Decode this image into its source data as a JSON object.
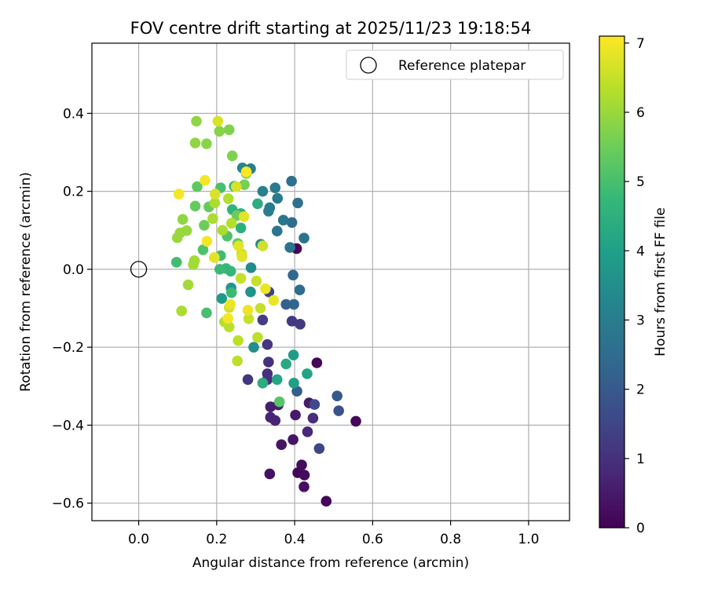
{
  "chart_data": {
    "type": "scatter",
    "title": "FOV centre drift starting at 2025/11/23 19:18:54",
    "xlabel": "Angular distance from reference (arcmin)",
    "ylabel": "Rotation from reference (arcmin)",
    "xlim": [
      -0.12,
      1.105
    ],
    "ylim": [
      -0.645,
      0.58
    ],
    "xticks": [
      "0.0",
      "0.2",
      "0.4",
      "0.6",
      "0.8",
      "1.0"
    ],
    "yticks": [
      "0.4",
      "0.2",
      "0.0",
      "−0.2",
      "−0.4",
      "−0.6"
    ],
    "xtick_values": [
      0.0,
      0.2,
      0.4,
      0.6,
      0.8,
      1.0
    ],
    "ytick_values": [
      0.4,
      0.2,
      0.0,
      -0.2,
      -0.4,
      -0.6
    ],
    "grid": true,
    "legend": {
      "position": "top-right",
      "label": "Reference platepar"
    },
    "reference_point": {
      "x": 0.0,
      "y": 0.0
    },
    "colorbar": {
      "label": "Hours from first FF file",
      "range": [
        0,
        7.1
      ],
      "ticks": [
        "0",
        "1",
        "2",
        "3",
        "4",
        "5",
        "6",
        "7"
      ],
      "tick_values": [
        0,
        1,
        2,
        3,
        4,
        5,
        6,
        7
      ],
      "colormap": "viridis",
      "colors": [
        "#440154",
        "#482878",
        "#3e4989",
        "#31688e",
        "#26828e",
        "#1f9e89",
        "#35b779",
        "#6ece58",
        "#b5de2b",
        "#fde725"
      ]
    },
    "points": [
      {
        "x": 0.405,
        "y": 0.053,
        "h": 0.1
      },
      {
        "x": 0.457,
        "y": -0.24,
        "h": 0.1
      },
      {
        "x": 0.557,
        "y": -0.39,
        "h": 0.1
      },
      {
        "x": 0.481,
        "y": -0.595,
        "h": 0.1
      },
      {
        "x": 0.408,
        "y": -0.522,
        "h": 0.1
      },
      {
        "x": 0.418,
        "y": -0.502,
        "h": 0.2
      },
      {
        "x": 0.425,
        "y": -0.528,
        "h": 0.2
      },
      {
        "x": 0.424,
        "y": -0.558,
        "h": 0.3
      },
      {
        "x": 0.336,
        "y": -0.525,
        "h": 0.3
      },
      {
        "x": 0.366,
        "y": -0.45,
        "h": 0.4
      },
      {
        "x": 0.396,
        "y": -0.437,
        "h": 0.4
      },
      {
        "x": 0.402,
        "y": -0.374,
        "h": 0.5
      },
      {
        "x": 0.437,
        "y": -0.343,
        "h": 0.5
      },
      {
        "x": 0.338,
        "y": -0.353,
        "h": 0.6
      },
      {
        "x": 0.358,
        "y": -0.348,
        "h": 0.6
      },
      {
        "x": 0.338,
        "y": -0.38,
        "h": 0.7
      },
      {
        "x": 0.35,
        "y": -0.388,
        "h": 0.7
      },
      {
        "x": 0.433,
        "y": -0.417,
        "h": 0.8
      },
      {
        "x": 0.447,
        "y": -0.382,
        "h": 0.9
      },
      {
        "x": 0.33,
        "y": -0.283,
        "h": 0.9
      },
      {
        "x": 0.33,
        "y": -0.268,
        "h": 1.0
      },
      {
        "x": 0.333,
        "y": -0.238,
        "h": 1.0
      },
      {
        "x": 0.33,
        "y": -0.193,
        "h": 1.1
      },
      {
        "x": 0.28,
        "y": -0.283,
        "h": 1.1
      },
      {
        "x": 0.393,
        "y": -0.133,
        "h": 1.2
      },
      {
        "x": 0.414,
        "y": -0.141,
        "h": 1.2
      },
      {
        "x": 0.318,
        "y": -0.13,
        "h": 1.3
      },
      {
        "x": 0.334,
        "y": -0.058,
        "h": 1.4
      },
      {
        "x": 0.463,
        "y": -0.46,
        "h": 1.5
      },
      {
        "x": 0.451,
        "y": -0.347,
        "h": 1.6
      },
      {
        "x": 0.513,
        "y": -0.363,
        "h": 1.8
      },
      {
        "x": 0.509,
        "y": -0.325,
        "h": 2.0
      },
      {
        "x": 0.406,
        "y": -0.313,
        "h": 2.1
      },
      {
        "x": 0.378,
        "y": -0.09,
        "h": 2.2
      },
      {
        "x": 0.398,
        "y": -0.09,
        "h": 2.3
      },
      {
        "x": 0.396,
        "y": -0.015,
        "h": 2.4
      },
      {
        "x": 0.413,
        "y": -0.053,
        "h": 2.5
      },
      {
        "x": 0.393,
        "y": 0.12,
        "h": 2.5
      },
      {
        "x": 0.392,
        "y": 0.226,
        "h": 2.6
      },
      {
        "x": 0.408,
        "y": 0.17,
        "h": 2.6
      },
      {
        "x": 0.424,
        "y": 0.08,
        "h": 2.7
      },
      {
        "x": 0.388,
        "y": 0.056,
        "h": 2.7
      },
      {
        "x": 0.355,
        "y": 0.098,
        "h": 2.8
      },
      {
        "x": 0.371,
        "y": 0.126,
        "h": 2.8
      },
      {
        "x": 0.35,
        "y": 0.209,
        "h": 2.9
      },
      {
        "x": 0.356,
        "y": 0.182,
        "h": 2.9
      },
      {
        "x": 0.333,
        "y": 0.149,
        "h": 3.0
      },
      {
        "x": 0.336,
        "y": 0.158,
        "h": 3.0
      },
      {
        "x": 0.318,
        "y": 0.2,
        "h": 3.1
      },
      {
        "x": 0.287,
        "y": 0.258,
        "h": 3.1
      },
      {
        "x": 0.266,
        "y": 0.26,
        "h": 3.2
      },
      {
        "x": 0.313,
        "y": 0.064,
        "h": 3.3
      },
      {
        "x": 0.288,
        "y": 0.004,
        "h": 3.4
      },
      {
        "x": 0.295,
        "y": -0.2,
        "h": 3.5
      },
      {
        "x": 0.287,
        "y": -0.058,
        "h": 3.6
      },
      {
        "x": 0.237,
        "y": -0.048,
        "h": 3.7
      },
      {
        "x": 0.213,
        "y": -0.075,
        "h": 3.8
      },
      {
        "x": 0.397,
        "y": -0.22,
        "h": 3.9
      },
      {
        "x": 0.398,
        "y": -0.292,
        "h": 4.0
      },
      {
        "x": 0.432,
        "y": -0.268,
        "h": 4.1
      },
      {
        "x": 0.355,
        "y": -0.283,
        "h": 4.2
      },
      {
        "x": 0.378,
        "y": -0.243,
        "h": 4.3
      },
      {
        "x": 0.318,
        "y": -0.292,
        "h": 4.4
      },
      {
        "x": 0.305,
        "y": 0.168,
        "h": 4.4
      },
      {
        "x": 0.262,
        "y": 0.143,
        "h": 4.5
      },
      {
        "x": 0.262,
        "y": 0.106,
        "h": 4.5
      },
      {
        "x": 0.24,
        "y": 0.153,
        "h": 4.6
      },
      {
        "x": 0.245,
        "y": 0.213,
        "h": 4.6
      },
      {
        "x": 0.236,
        "y": -0.005,
        "h": 4.7
      },
      {
        "x": 0.224,
        "y": 0.002,
        "h": 4.7
      },
      {
        "x": 0.208,
        "y": 0.0,
        "h": 4.8
      },
      {
        "x": 0.238,
        "y": -0.06,
        "h": 4.8
      },
      {
        "x": 0.097,
        "y": 0.018,
        "h": 4.9
      },
      {
        "x": 0.21,
        "y": 0.035,
        "h": 4.9
      },
      {
        "x": 0.174,
        "y": -0.112,
        "h": 5.0
      },
      {
        "x": 0.21,
        "y": 0.209,
        "h": 5.0
      },
      {
        "x": 0.165,
        "y": 0.05,
        "h": 5.1
      },
      {
        "x": 0.227,
        "y": 0.085,
        "h": 5.1
      },
      {
        "x": 0.361,
        "y": -0.34,
        "h": 5.2
      },
      {
        "x": 0.254,
        "y": 0.066,
        "h": 5.3
      },
      {
        "x": 0.15,
        "y": 0.212,
        "h": 5.3
      },
      {
        "x": 0.18,
        "y": 0.16,
        "h": 5.4
      },
      {
        "x": 0.145,
        "y": 0.162,
        "h": 5.4
      },
      {
        "x": 0.168,
        "y": 0.113,
        "h": 5.5
      },
      {
        "x": 0.252,
        "y": 0.138,
        "h": 5.5
      },
      {
        "x": 0.276,
        "y": 0.246,
        "h": 5.6
      },
      {
        "x": 0.271,
        "y": 0.217,
        "h": 5.6
      },
      {
        "x": 0.24,
        "y": 0.291,
        "h": 5.7
      },
      {
        "x": 0.232,
        "y": 0.358,
        "h": 5.7
      },
      {
        "x": 0.207,
        "y": 0.354,
        "h": 5.8
      },
      {
        "x": 0.174,
        "y": 0.322,
        "h": 5.8
      },
      {
        "x": 0.145,
        "y": 0.324,
        "h": 5.9
      },
      {
        "x": 0.148,
        "y": 0.38,
        "h": 5.9
      },
      {
        "x": 0.113,
        "y": 0.128,
        "h": 5.9
      },
      {
        "x": 0.123,
        "y": 0.099,
        "h": 6.0
      },
      {
        "x": 0.099,
        "y": 0.081,
        "h": 6.0
      },
      {
        "x": 0.106,
        "y": 0.093,
        "h": 6.0
      },
      {
        "x": 0.14,
        "y": 0.012,
        "h": 6.1
      },
      {
        "x": 0.143,
        "y": 0.022,
        "h": 6.1
      },
      {
        "x": 0.127,
        "y": -0.04,
        "h": 6.1
      },
      {
        "x": 0.11,
        "y": -0.107,
        "h": 6.2
      },
      {
        "x": 0.195,
        "y": 0.17,
        "h": 6.2
      },
      {
        "x": 0.19,
        "y": 0.13,
        "h": 6.2
      },
      {
        "x": 0.215,
        "y": 0.1,
        "h": 6.2
      },
      {
        "x": 0.238,
        "y": 0.118,
        "h": 6.3
      },
      {
        "x": 0.23,
        "y": 0.181,
        "h": 6.3
      },
      {
        "x": 0.22,
        "y": -0.135,
        "h": 6.3
      },
      {
        "x": 0.232,
        "y": -0.148,
        "h": 6.4
      },
      {
        "x": 0.255,
        "y": -0.183,
        "h": 6.4
      },
      {
        "x": 0.253,
        "y": -0.235,
        "h": 6.4
      },
      {
        "x": 0.305,
        "y": -0.175,
        "h": 6.4
      },
      {
        "x": 0.312,
        "y": -0.1,
        "h": 6.5
      },
      {
        "x": 0.282,
        "y": -0.127,
        "h": 6.5
      },
      {
        "x": 0.262,
        "y": -0.023,
        "h": 6.5
      },
      {
        "x": 0.302,
        "y": -0.03,
        "h": 6.5
      },
      {
        "x": 0.318,
        "y": 0.06,
        "h": 6.6
      },
      {
        "x": 0.264,
        "y": 0.04,
        "h": 6.6
      },
      {
        "x": 0.232,
        "y": -0.098,
        "h": 6.6
      },
      {
        "x": 0.203,
        "y": 0.38,
        "h": 6.7
      },
      {
        "x": 0.25,
        "y": 0.212,
        "h": 6.7
      },
      {
        "x": 0.196,
        "y": 0.193,
        "h": 6.7
      },
      {
        "x": 0.27,
        "y": 0.135,
        "h": 6.8
      },
      {
        "x": 0.265,
        "y": 0.032,
        "h": 6.8
      },
      {
        "x": 0.256,
        "y": 0.06,
        "h": 6.8
      },
      {
        "x": 0.194,
        "y": 0.03,
        "h": 6.8
      },
      {
        "x": 0.325,
        "y": -0.05,
        "h": 6.9
      },
      {
        "x": 0.346,
        "y": -0.08,
        "h": 6.9
      },
      {
        "x": 0.28,
        "y": -0.105,
        "h": 6.9
      },
      {
        "x": 0.235,
        "y": -0.09,
        "h": 6.9
      },
      {
        "x": 0.229,
        "y": -0.126,
        "h": 7.0
      },
      {
        "x": 0.175,
        "y": 0.072,
        "h": 7.0
      },
      {
        "x": 0.17,
        "y": 0.228,
        "h": 7.0
      },
      {
        "x": 0.103,
        "y": 0.193,
        "h": 7.0
      },
      {
        "x": 0.276,
        "y": 0.25,
        "h": 7.1
      }
    ]
  }
}
